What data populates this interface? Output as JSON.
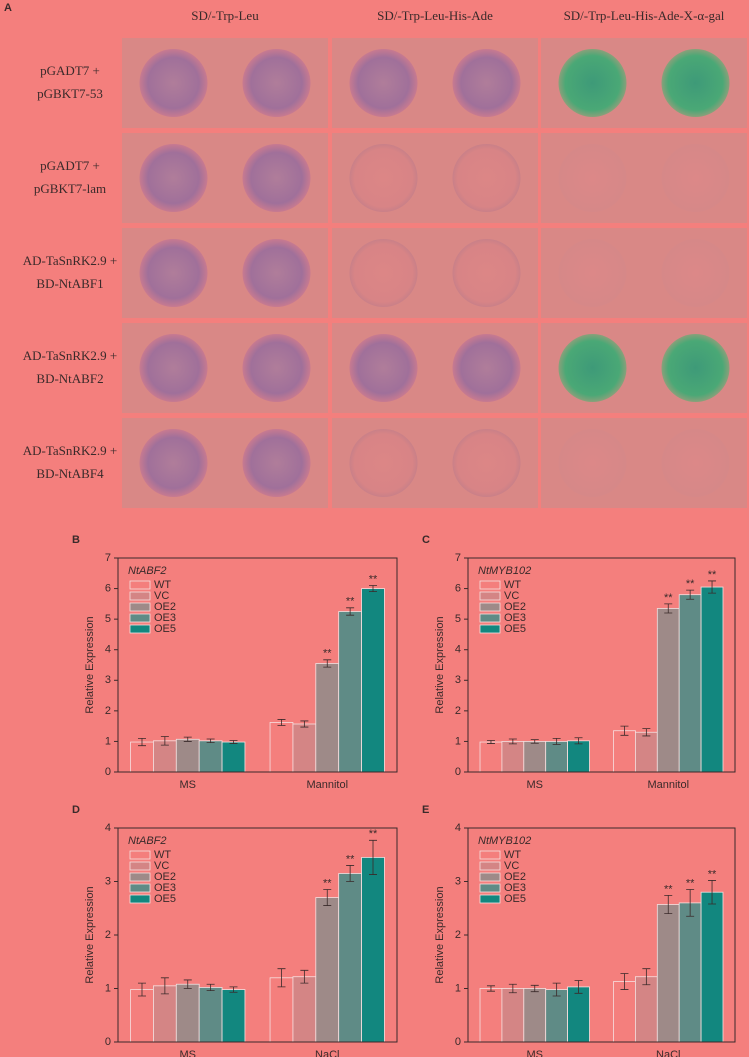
{
  "panel_a": {
    "label": "A",
    "columns": [
      "SD/-Trp-Leu",
      "SD/-Trp-Leu-His-Ade",
      "SD/-Trp-Leu-His-Ade-X-α-gal"
    ],
    "rows": [
      [
        "pGADT7 +",
        "pGBKT7-53"
      ],
      [
        "pGADT7 +",
        "pGBKT7-lam"
      ],
      [
        "AD-TaSnRK2.9 +",
        "BD-NtABF1"
      ],
      [
        "AD-TaSnRK2.9 +",
        "BD-NtABF2"
      ],
      [
        "AD-TaSnRK2.9 +",
        "BD-NtABF4"
      ]
    ]
  },
  "chart_data": [
    {
      "type": "bar",
      "panel": "B",
      "title": "NtABF2",
      "ylabel": "Relative Expression",
      "categories": [
        "MS",
        "Mannitol"
      ],
      "ylim": [
        0,
        7
      ],
      "yticks": [
        0,
        1,
        2,
        3,
        4,
        5,
        6,
        7
      ],
      "series": [
        {
          "name": "WT",
          "color": "#f47f7d",
          "values": [
            0.98,
            1.62
          ],
          "errors": [
            0.12,
            0.1
          ]
        },
        {
          "name": "VC",
          "color": "#d48585",
          "values": [
            1.02,
            1.57
          ],
          "errors": [
            0.14,
            0.1
          ]
        },
        {
          "name": "OE2",
          "color": "#9e8a88",
          "values": [
            1.07,
            3.55
          ],
          "errors": [
            0.07,
            0.12
          ],
          "annotations": [
            null,
            "**"
          ]
        },
        {
          "name": "OE3",
          "color": "#5f8b86",
          "values": [
            1.02,
            5.25
          ],
          "errors": [
            0.06,
            0.12
          ],
          "annotations": [
            null,
            "**"
          ]
        },
        {
          "name": "OE5",
          "color": "#12877f",
          "values": [
            0.98,
            6.0
          ],
          "errors": [
            0.05,
            0.1
          ],
          "annotations": [
            null,
            "**"
          ]
        }
      ]
    },
    {
      "type": "bar",
      "panel": "C",
      "title": "NtMYB102",
      "ylabel": "Relative Expression",
      "categories": [
        "MS",
        "Mannitol"
      ],
      "ylim": [
        0,
        7
      ],
      "yticks": [
        0,
        1,
        2,
        3,
        4,
        5,
        6,
        7
      ],
      "series": [
        {
          "name": "WT",
          "color": "#f47f7d",
          "values": [
            0.98,
            1.35
          ],
          "errors": [
            0.05,
            0.15
          ]
        },
        {
          "name": "VC",
          "color": "#d48585",
          "values": [
            1.0,
            1.3
          ],
          "errors": [
            0.08,
            0.12
          ]
        },
        {
          "name": "OE2",
          "color": "#9e8a88",
          "values": [
            1.0,
            5.35
          ],
          "errors": [
            0.06,
            0.15
          ],
          "annotations": [
            null,
            "**"
          ]
        },
        {
          "name": "OE3",
          "color": "#5f8b86",
          "values": [
            1.0,
            5.8
          ],
          "errors": [
            0.1,
            0.15
          ],
          "annotations": [
            null,
            "**"
          ]
        },
        {
          "name": "OE5",
          "color": "#12877f",
          "values": [
            1.02,
            6.05
          ],
          "errors": [
            0.1,
            0.2
          ],
          "annotations": [
            null,
            "**"
          ]
        }
      ]
    },
    {
      "type": "bar",
      "panel": "D",
      "title": "NtABF2",
      "ylabel": "Relative Expression",
      "categories": [
        "MS",
        "NaCl"
      ],
      "ylim": [
        0,
        4
      ],
      "yticks": [
        0,
        1,
        2,
        3,
        4
      ],
      "series": [
        {
          "name": "WT",
          "color": "#f47f7d",
          "values": [
            0.98,
            1.2
          ],
          "errors": [
            0.12,
            0.17
          ]
        },
        {
          "name": "VC",
          "color": "#d48585",
          "values": [
            1.05,
            1.22
          ],
          "errors": [
            0.15,
            0.12
          ]
        },
        {
          "name": "OE2",
          "color": "#9e8a88",
          "values": [
            1.08,
            2.7
          ],
          "errors": [
            0.08,
            0.15
          ],
          "annotations": [
            null,
            "**"
          ]
        },
        {
          "name": "OE3",
          "color": "#5f8b86",
          "values": [
            1.02,
            3.15
          ],
          "errors": [
            0.06,
            0.15
          ],
          "annotations": [
            null,
            "**"
          ]
        },
        {
          "name": "OE5",
          "color": "#12877f",
          "values": [
            0.98,
            3.45
          ],
          "errors": [
            0.05,
            0.32
          ],
          "annotations": [
            null,
            "**"
          ]
        }
      ]
    },
    {
      "type": "bar",
      "panel": "E",
      "title": "NtMYB102",
      "ylabel": "Relative Expression",
      "categories": [
        "MS",
        "NaCl"
      ],
      "ylim": [
        0,
        4
      ],
      "yticks": [
        0,
        1,
        2,
        3,
        4
      ],
      "series": [
        {
          "name": "WT",
          "color": "#f47f7d",
          "values": [
            1.0,
            1.13
          ],
          "errors": [
            0.05,
            0.15
          ]
        },
        {
          "name": "VC",
          "color": "#d48585",
          "values": [
            1.0,
            1.22
          ],
          "errors": [
            0.08,
            0.15
          ]
        },
        {
          "name": "OE2",
          "color": "#9e8a88",
          "values": [
            1.0,
            2.57
          ],
          "errors": [
            0.06,
            0.17
          ],
          "annotations": [
            null,
            "**"
          ]
        },
        {
          "name": "OE3",
          "color": "#5f8b86",
          "values": [
            0.98,
            2.6
          ],
          "errors": [
            0.12,
            0.25
          ],
          "annotations": [
            null,
            "**"
          ]
        },
        {
          "name": "OE5",
          "color": "#12877f",
          "values": [
            1.03,
            2.8
          ],
          "errors": [
            0.12,
            0.22
          ],
          "annotations": [
            null,
            "**"
          ]
        }
      ]
    }
  ]
}
